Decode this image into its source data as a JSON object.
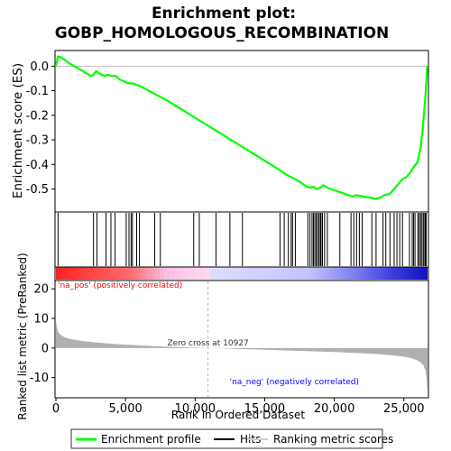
{
  "title_line1": "Enrichment plot:",
  "title_line2": "GOBP_HOMOLOGOUS_RECOMBINATION",
  "colors": {
    "profile": "#00ff00",
    "hits": "#000000",
    "metric": "#b0b0b0",
    "pos_label": "#ff0000",
    "neg_label": "#0000ff",
    "zero_line": "#b4b4b4"
  },
  "legend": {
    "profile": "Enrichment profile",
    "hits": "Hits",
    "metric": "Ranking metric scores"
  },
  "chart_data": [
    {
      "type": "line",
      "name": "enrichment_profile",
      "ylabel": "Enrichment score (ES)",
      "xlim": [
        0,
        26700
      ],
      "ylim": [
        -0.59,
        0.06
      ],
      "yticks": [
        0.0,
        -0.1,
        -0.2,
        -0.3,
        -0.4,
        -0.5
      ],
      "ytick_labels": [
        "0.0",
        "-0.1",
        "-0.2",
        "-0.3",
        "-0.4",
        "-0.5"
      ],
      "grid": false,
      "x": [
        0,
        150,
        400,
        1000,
        1800,
        2500,
        2700,
        2900,
        3100,
        3500,
        3700,
        4000,
        4300,
        4600,
        5000,
        5200,
        5500,
        6000,
        7000,
        8000,
        9000,
        10000,
        11000,
        12000,
        13000,
        14000,
        15000,
        16000,
        16500,
        17000,
        17500,
        18000,
        18300,
        18500,
        18700,
        19000,
        19200,
        19500,
        20000,
        20500,
        21000,
        21300,
        21600,
        22000,
        22500,
        23000,
        23300,
        23600,
        24000,
        24300,
        24600,
        24900,
        25200,
        25500,
        25700,
        26000,
        26200,
        26350,
        26450,
        26550,
        26620,
        26680
      ],
      "y": [
        0.0,
        0.04,
        0.035,
        0.01,
        -0.015,
        -0.04,
        -0.035,
        -0.02,
        -0.03,
        -0.04,
        -0.035,
        -0.04,
        -0.04,
        -0.055,
        -0.065,
        -0.07,
        -0.07,
        -0.08,
        -0.11,
        -0.14,
        -0.175,
        -0.21,
        -0.245,
        -0.28,
        -0.315,
        -0.35,
        -0.385,
        -0.42,
        -0.44,
        -0.455,
        -0.47,
        -0.49,
        -0.495,
        -0.49,
        -0.5,
        -0.495,
        -0.485,
        -0.495,
        -0.505,
        -0.515,
        -0.525,
        -0.53,
        -0.525,
        -0.53,
        -0.535,
        -0.54,
        -0.535,
        -0.525,
        -0.52,
        -0.5,
        -0.48,
        -0.46,
        -0.45,
        -0.43,
        -0.41,
        -0.39,
        -0.33,
        -0.26,
        -0.19,
        -0.12,
        -0.05,
        0.0
      ]
    },
    {
      "type": "scatter",
      "name": "hits",
      "x": [
        150,
        2700,
        2950,
        3600,
        3950,
        4250,
        5050,
        5250,
        5400,
        5500,
        5800,
        6000,
        7100,
        7500,
        9900,
        10300,
        11500,
        12500,
        13400,
        16100,
        16400,
        16700,
        16900,
        17000,
        17200,
        18100,
        18250,
        18400,
        18500,
        18600,
        18700,
        18800,
        18900,
        19000,
        19050,
        19150,
        19300,
        19500,
        20400,
        21200,
        21400,
        21600,
        21800,
        22000,
        22700,
        23000,
        23500,
        23700,
        24000,
        24300,
        24500,
        24700,
        24900,
        25400,
        25600,
        25700,
        25800,
        26000,
        26100,
        26200,
        26300,
        26400,
        26500,
        26550,
        26600
      ]
    },
    {
      "type": "area",
      "name": "ranking_metric",
      "xlabel": "Rank in Ordered Dataset",
      "ylabel": "Ranked list metric (PreRanked)",
      "xlim": [
        0,
        26700
      ],
      "ylim": [
        -16.5,
        22.5
      ],
      "yticks": [
        20,
        10,
        0,
        -10
      ],
      "ytick_labels": [
        "20",
        "10",
        "0",
        "-10"
      ],
      "xticks": [
        0,
        5000,
        10000,
        15000,
        20000,
        25000
      ],
      "xtick_labels": [
        "0",
        "5,000",
        "10,000",
        "15,000",
        "20,000",
        "25,000"
      ],
      "x": [
        0,
        50,
        150,
        300,
        600,
        1000,
        2000,
        3000,
        4000,
        5000,
        6000,
        7000,
        8000,
        9000,
        10000,
        10927,
        12000,
        14000,
        16000,
        18000,
        20000,
        22000,
        23000,
        24000,
        25000,
        25500,
        25900,
        26200,
        26400,
        26550,
        26650,
        26700
      ],
      "y": [
        9.0,
        7.5,
        5.6,
        4.6,
        3.7,
        3.1,
        2.3,
        1.8,
        1.45,
        1.15,
        0.9,
        0.65,
        0.45,
        0.3,
        0.12,
        0.0,
        -0.15,
        -0.45,
        -0.75,
        -1.05,
        -1.35,
        -1.75,
        -2.0,
        -2.4,
        -2.9,
        -3.4,
        -4.0,
        -4.8,
        -5.8,
        -7.5,
        -11.0,
        -15.5
      ],
      "zero_cross": 10927,
      "zero_cross_label": "Zero cross at 10927",
      "pos_label": "'na_pos' (positively correlated)",
      "neg_label": "'na_neg' (negatively correlated)"
    }
  ]
}
